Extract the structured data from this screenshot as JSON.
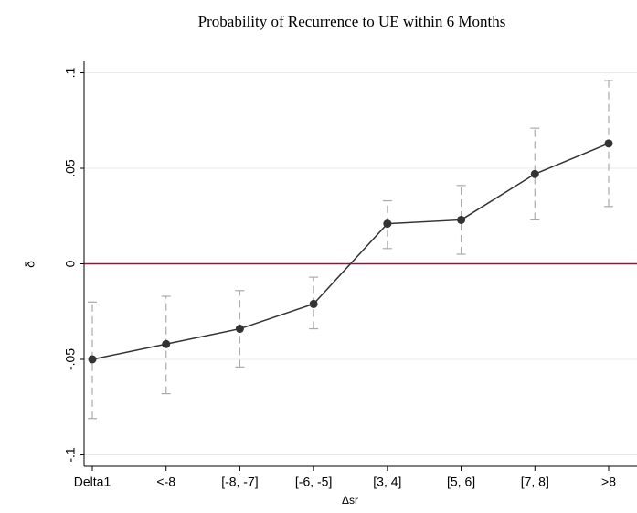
{
  "chart_data": {
    "type": "line",
    "title": "Probability of Recurrence to UE within 6 Months",
    "x_label": "Δsr",
    "y_label": "δ",
    "categories": [
      "Delta1",
      "<-8",
      "[-8, -7]",
      "[-6, -5]",
      "[3, 4]",
      "[5, 6]",
      "[7, 8]",
      ">8"
    ],
    "series": [
      {
        "color": "#333333",
        "values": [
          -0.05,
          -0.042,
          -0.034,
          -0.021,
          0.021,
          0.023,
          0.047,
          0.063
        ],
        "lower": [
          -0.081,
          -0.068,
          -0.054,
          -0.034,
          0.008,
          0.005,
          0.023,
          0.03
        ],
        "upper": [
          -0.02,
          -0.017,
          -0.014,
          -0.007,
          0.033,
          0.041,
          0.071,
          0.096
        ]
      }
    ],
    "error_color": "#aaaaaa",
    "ylim": [
      -0.106,
      0.106
    ],
    "yticks": [
      {
        "value": -0.1,
        "label": "-.1"
      },
      {
        "value": -0.05,
        "label": "-.05"
      },
      {
        "value": 0,
        "label": "0"
      },
      {
        "value": 0.05,
        "label": ".05"
      },
      {
        "value": 0.1,
        "label": ".1"
      }
    ],
    "grid": true,
    "hline": 0,
    "hline_color": "#8b1a3a"
  }
}
